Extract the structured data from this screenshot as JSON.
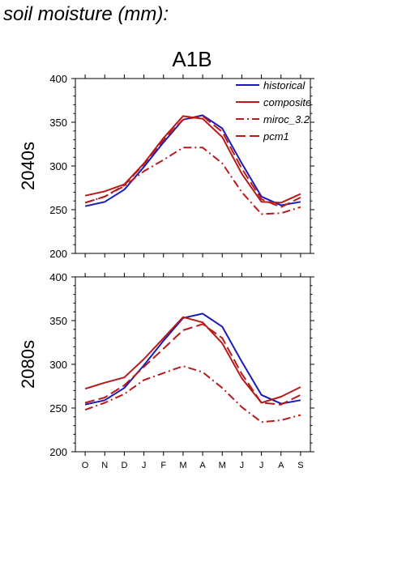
{
  "page_title": "soil moisture (mm):",
  "scenario_title": "A1B",
  "colors": {
    "historical": "#1a1ab8",
    "model": "#b81a1a"
  },
  "chart_data": [
    {
      "type": "line",
      "ylabel": "2040s",
      "ylim": [
        200,
        400
      ],
      "yticks": [
        200,
        250,
        300,
        350,
        400
      ],
      "categories": [
        "O",
        "N",
        "D",
        "J",
        "F",
        "M",
        "A",
        "M",
        "J",
        "J",
        "A",
        "S"
      ],
      "legend_position": "top-right",
      "series": [
        {
          "name": "historical",
          "style": "solid",
          "color": "#1a1ab8",
          "values": [
            254,
            259,
            273,
            299,
            327,
            353,
            358,
            343,
            303,
            265,
            255,
            259
          ]
        },
        {
          "name": "composite",
          "style": "solid",
          "color": "#b81a1a",
          "values": [
            266,
            271,
            279,
            303,
            332,
            357,
            354,
            333,
            291,
            259,
            258,
            268
          ]
        },
        {
          "name": "miroc_3.2",
          "style": "dashdot",
          "color": "#b81a1a",
          "values": [
            258,
            265,
            277,
            294,
            307,
            321,
            321,
            303,
            270,
            245,
            246,
            253
          ]
        },
        {
          "name": "pcm1",
          "style": "dashed",
          "color": "#b81a1a",
          "values": [
            258,
            265,
            278,
            302,
            330,
            353,
            357,
            339,
            297,
            262,
            253,
            264
          ]
        }
      ]
    },
    {
      "type": "line",
      "ylabel": "2080s",
      "ylim": [
        200,
        400
      ],
      "yticks": [
        200,
        250,
        300,
        350,
        400
      ],
      "categories": [
        "O",
        "N",
        "D",
        "J",
        "F",
        "M",
        "A",
        "M",
        "J",
        "J",
        "A",
        "S"
      ],
      "series": [
        {
          "name": "historical",
          "style": "solid",
          "color": "#1a1ab8",
          "values": [
            254,
            259,
            273,
            299,
            327,
            353,
            358,
            343,
            303,
            265,
            255,
            259
          ]
        },
        {
          "name": "composite",
          "style": "solid",
          "color": "#b81a1a",
          "values": [
            272,
            279,
            285,
            306,
            330,
            354,
            348,
            324,
            284,
            256,
            263,
            274
          ]
        },
        {
          "name": "miroc_3.2",
          "style": "dashdot",
          "color": "#b81a1a",
          "values": [
            248,
            256,
            266,
            282,
            290,
            298,
            291,
            273,
            251,
            234,
            236,
            242
          ]
        },
        {
          "name": "pcm1",
          "style": "dashed",
          "color": "#b81a1a",
          "values": [
            256,
            262,
            276,
            297,
            318,
            339,
            346,
            330,
            289,
            256,
            254,
            265
          ]
        }
      ]
    }
  ]
}
